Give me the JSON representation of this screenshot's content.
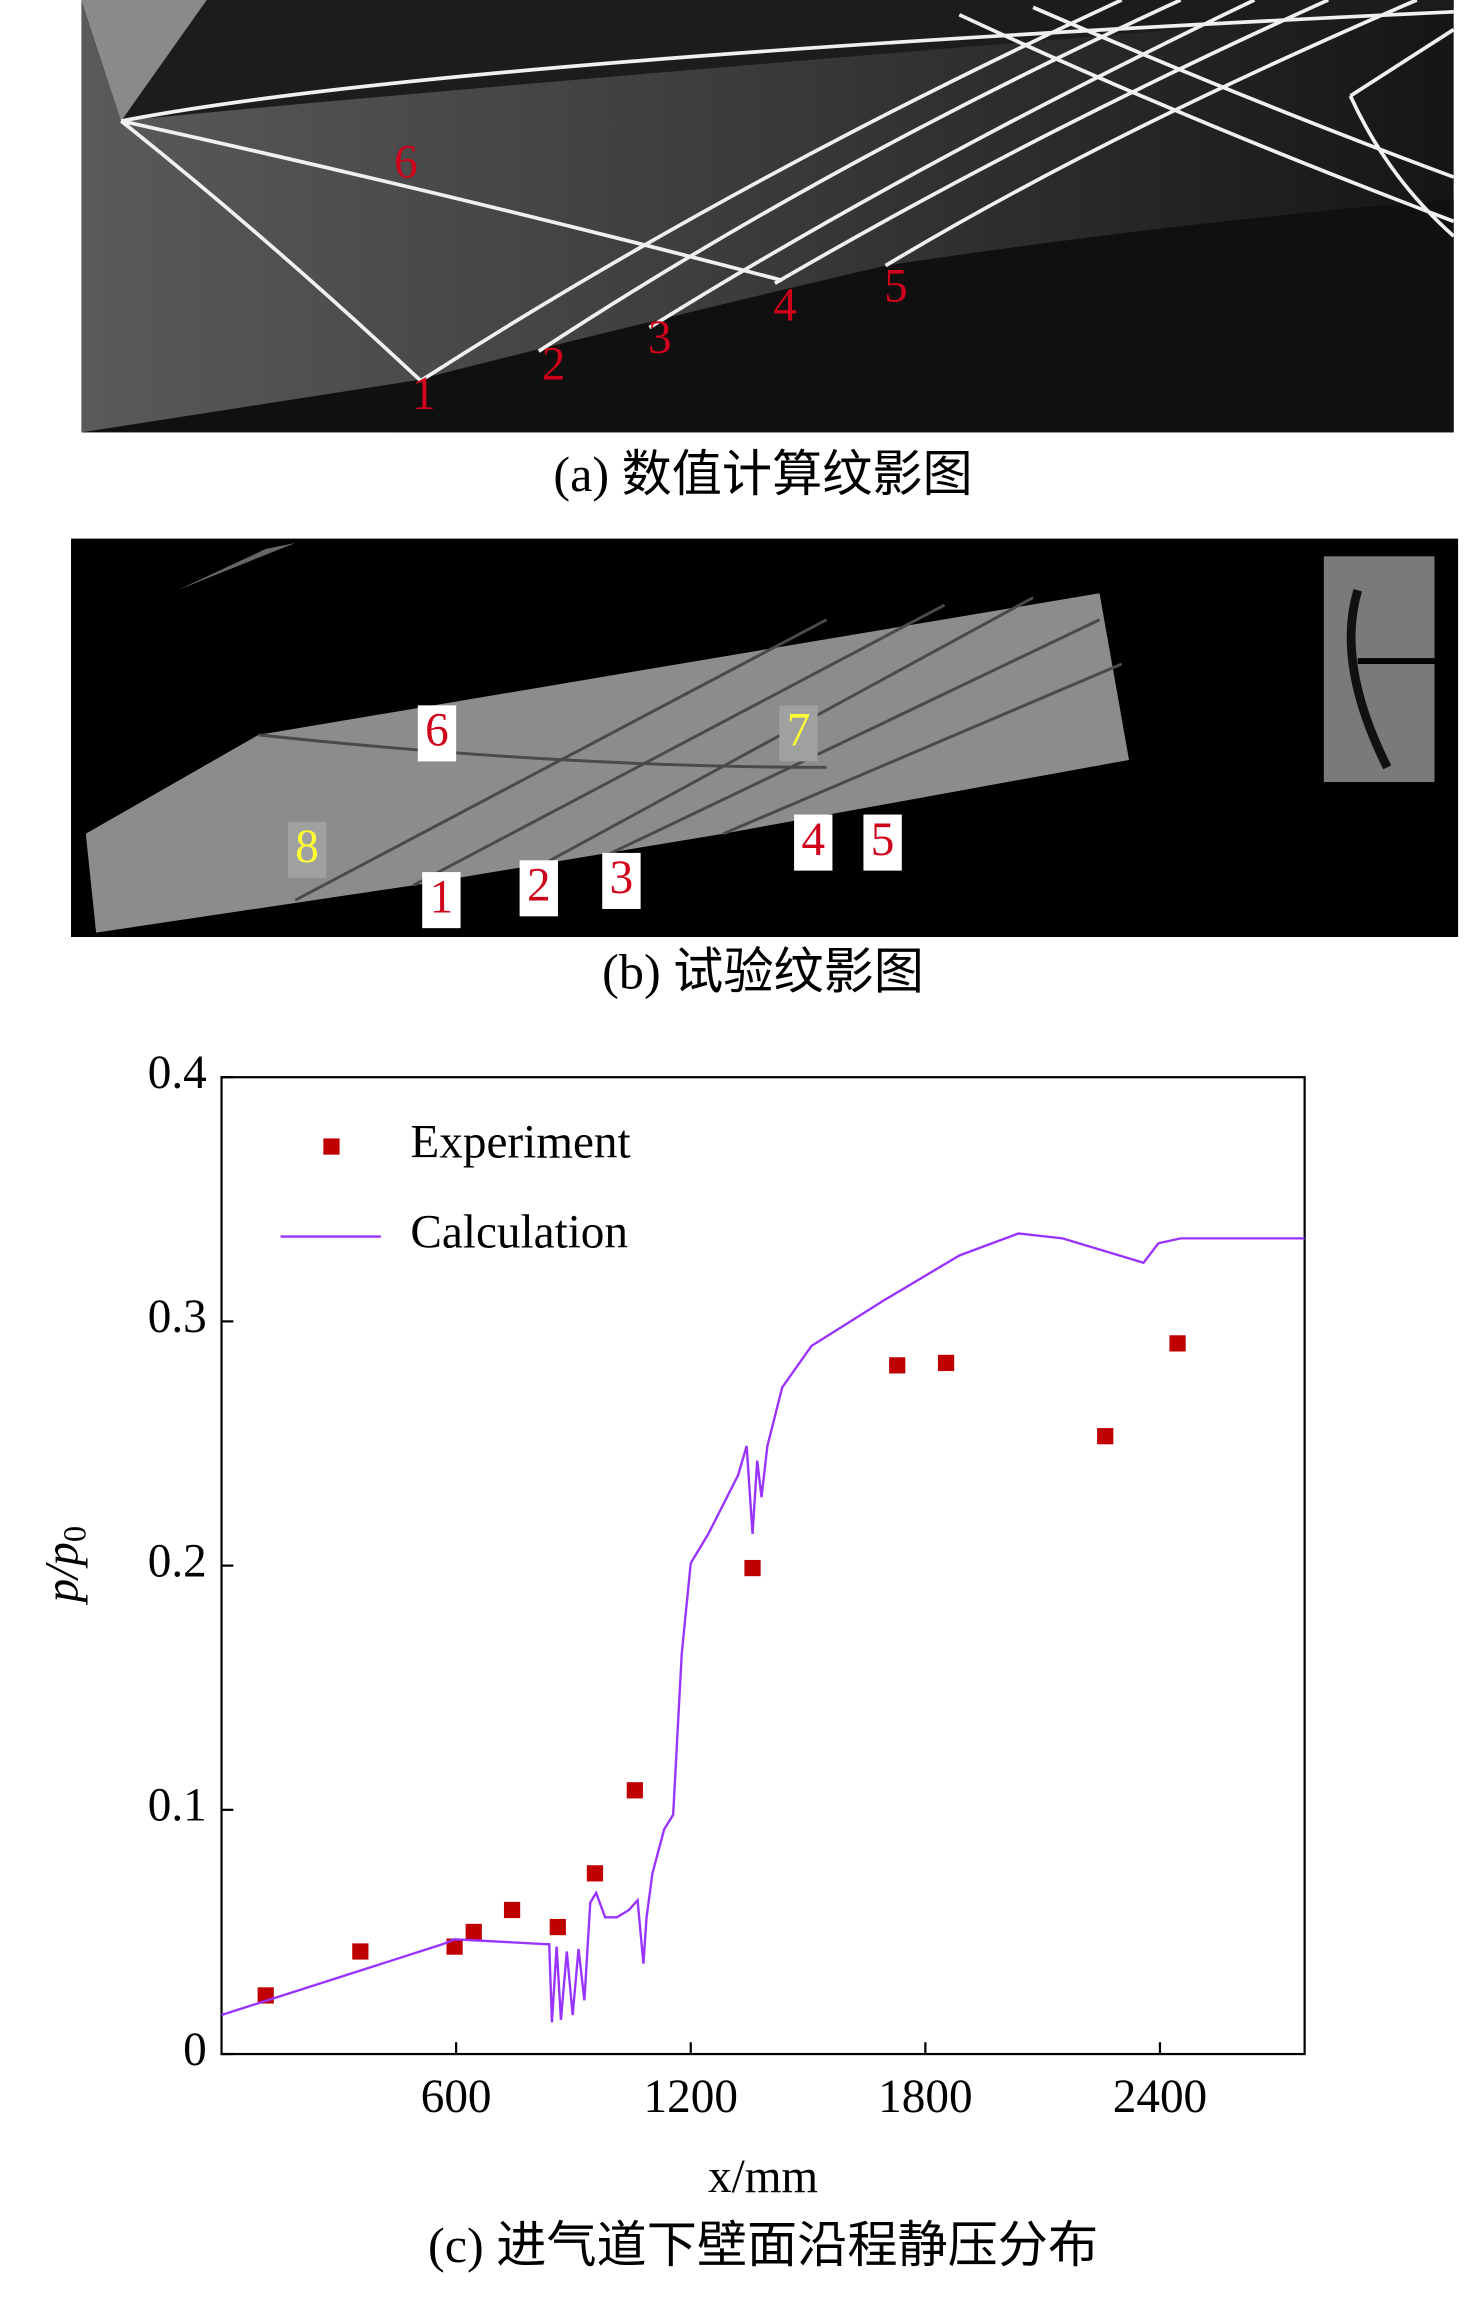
{
  "panels": {
    "a": {
      "caption": "(a) 数值计算纹影图",
      "labels": [
        "6",
        "1",
        "2",
        "3",
        "4",
        "5"
      ]
    },
    "b": {
      "caption": "(b) 试验纹影图",
      "labels": [
        "6",
        "7",
        "8",
        "1",
        "2",
        "3",
        "4",
        "5"
      ]
    }
  },
  "chart_data": {
    "type": "line",
    "caption": "(c) 进气道下壁面沿程静压分布",
    "xlabel": "x/mm",
    "ylabel": {
      "text": "p/p",
      "subscript": "0"
    },
    "xlim": [
      0,
      2770
    ],
    "xticks": [
      600,
      1200,
      1800,
      2400
    ],
    "ylim": [
      0,
      0.4
    ],
    "yticks": [
      0,
      0.1,
      0.2,
      0.3,
      0.4
    ],
    "legend": "upper-left",
    "series": [
      {
        "name": "Experiment",
        "type": "scatter",
        "color": "#c00000",
        "x": [
          113,
          355,
          596,
          645,
          743,
          860,
          955,
          1057,
          1358,
          1728,
          1853,
          2260,
          2445
        ],
        "values": [
          0.024,
          0.042,
          0.044,
          0.05,
          0.059,
          0.052,
          0.074,
          0.108,
          0.199,
          0.282,
          0.283,
          0.253,
          0.291
        ]
      },
      {
        "name": "Calculation",
        "type": "line",
        "color": "#9933ff",
        "x": [
          0,
          566,
          596,
          830,
          838,
          845,
          857,
          868,
          883,
          898,
          913,
          928,
          943,
          958,
          981,
          1011,
          1042,
          1064,
          1079,
          1087,
          1102,
          1132,
          1155,
          1177,
          1200,
          1245,
          1321,
          1343,
          1358,
          1370,
          1381,
          1396,
          1434,
          1509,
          1698,
          1887,
          2038,
          2151,
          2358,
          2396,
          2453,
          2770
        ],
        "values": [
          0.016,
          0.045,
          0.047,
          0.045,
          0.045,
          0.013,
          0.044,
          0.014,
          0.042,
          0.016,
          0.043,
          0.022,
          0.062,
          0.066,
          0.056,
          0.056,
          0.059,
          0.063,
          0.037,
          0.056,
          0.074,
          0.092,
          0.098,
          0.164,
          0.201,
          0.213,
          0.237,
          0.249,
          0.213,
          0.243,
          0.228,
          0.249,
          0.273,
          0.29,
          0.309,
          0.327,
          0.336,
          0.334,
          0.324,
          0.332,
          0.334,
          0.334
        ]
      }
    ]
  }
}
